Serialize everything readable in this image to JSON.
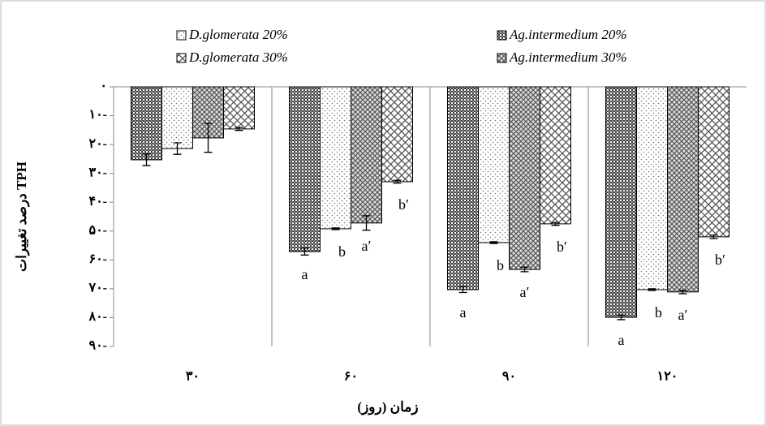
{
  "chart_data": {
    "type": "bar",
    "categories": [
      "۳۰",
      "۶۰",
      "۹۰",
      "۱۲۰"
    ],
    "x_label": "زمان (روز)",
    "y_label": "درصد تغییرات TPH",
    "ylim": [
      0,
      -90
    ],
    "yticks": [
      {
        "value": 0,
        "label": "۰"
      },
      {
        "value": -10,
        "label": "۱۰-"
      },
      {
        "value": -20,
        "label": "۲۰-"
      },
      {
        "value": -30,
        "label": "۳۰-"
      },
      {
        "value": -40,
        "label": "۴۰-"
      },
      {
        "value": -50,
        "label": "۵۰-"
      },
      {
        "value": -60,
        "label": "۶۰-"
      },
      {
        "value": -70,
        "label": "۷۰-"
      },
      {
        "value": -80,
        "label": "۸۰-"
      },
      {
        "value": -90,
        "label": "۹۰-"
      }
    ],
    "series": [
      {
        "name": "Ag.intermedium 20%",
        "pattern": "checker",
        "color": "#555555",
        "values": [
          -25.3,
          -57.1,
          -70.3,
          -79.9
        ],
        "errors": [
          2,
          1.2,
          1,
          0.8
        ],
        "letters": [
          null,
          "a",
          "a",
          "a"
        ]
      },
      {
        "name": "D.glomerata 20%",
        "pattern": "dots",
        "color": "#777777",
        "values": [
          -21.4,
          -49.2,
          -54,
          -70.3
        ],
        "errors": [
          2,
          0.3,
          0.3,
          0.3
        ],
        "letters": [
          null,
          "b",
          "b",
          "b"
        ]
      },
      {
        "name": "Ag.intermedium 30%",
        "pattern": "diamond",
        "color": "#666666",
        "values": [
          -17.7,
          -47.2,
          -63.3,
          -71.1
        ],
        "errors": [
          5,
          2.5,
          0.8,
          0.6
        ],
        "letters": [
          null,
          "a′",
          "a′",
          "a′"
        ]
      },
      {
        "name": "D.glomerata 30%",
        "pattern": "cross",
        "color": "#666666",
        "values": [
          -14.6,
          -32.9,
          -47.5,
          -52
        ],
        "errors": [
          0.5,
          0.5,
          0.5,
          0.6
        ],
        "letters": [
          null,
          "b′",
          "b′",
          "b′"
        ]
      }
    ]
  }
}
